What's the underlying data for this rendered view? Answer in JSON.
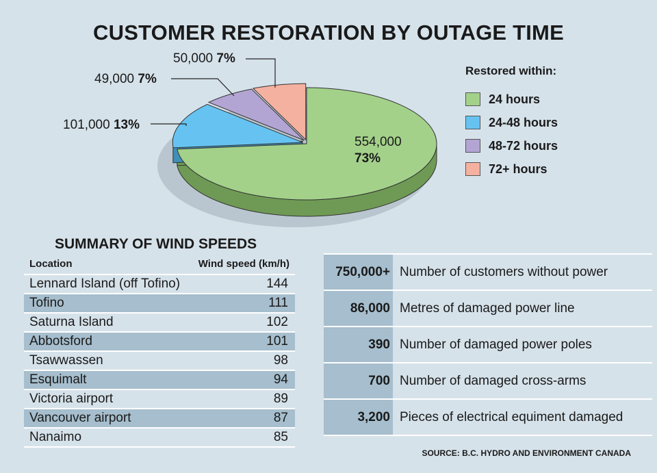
{
  "title": "CUSTOMER RESTORATION BY OUTAGE TIME",
  "chart_data": {
    "type": "pie",
    "title": "CUSTOMER RESTORATION BY OUTAGE TIME",
    "legend_title": "Restored within:",
    "legend_position": "right",
    "slices": [
      {
        "label": "24 hours",
        "value": 554000,
        "value_text": "554,000",
        "percent": "73%",
        "color": "#a3d18a"
      },
      {
        "label": "24-48 hours",
        "value": 101000,
        "value_text": "101,000",
        "percent": "13%",
        "color": "#66c3f1"
      },
      {
        "label": "48-72 hours",
        "value": 49000,
        "value_text": "49,000",
        "percent": "7%",
        "color": "#b3a5d3"
      },
      {
        "label": "72+ hours",
        "value": 50000,
        "value_text": "50,000",
        "percent": "7%",
        "color": "#f5b1a0"
      }
    ]
  },
  "wind": {
    "title": "SUMMARY OF WIND SPEEDS",
    "col_location": "Location",
    "col_speed": "Wind speed (km/h)",
    "rows": [
      {
        "location": "Lennard Island (off Tofino)",
        "speed": "144"
      },
      {
        "location": "Tofino",
        "speed": "111"
      },
      {
        "location": "Saturna Island",
        "speed": "102"
      },
      {
        "location": "Abbotsford",
        "speed": "101"
      },
      {
        "location": "Tsawwassen",
        "speed": "98"
      },
      {
        "location": "Esquimalt",
        "speed": "94"
      },
      {
        "location": "Victoria airport",
        "speed": "89"
      },
      {
        "location": "Vancouver airport",
        "speed": "87"
      },
      {
        "location": "Nanaimo",
        "speed": "85"
      }
    ]
  },
  "stats": [
    {
      "value": "750,000+",
      "label": "Number of customers without power"
    },
    {
      "value": "86,000",
      "label": "Metres of damaged power line"
    },
    {
      "value": "390",
      "label": "Number of damaged power poles"
    },
    {
      "value": "700",
      "label": "Number of damaged cross-arms"
    },
    {
      "value": "3,200",
      "label": "Pieces of electrical equiment damaged"
    }
  ],
  "source": "SOURCE: B.C. HYDRO AND ENVIRONMENT CANADA"
}
